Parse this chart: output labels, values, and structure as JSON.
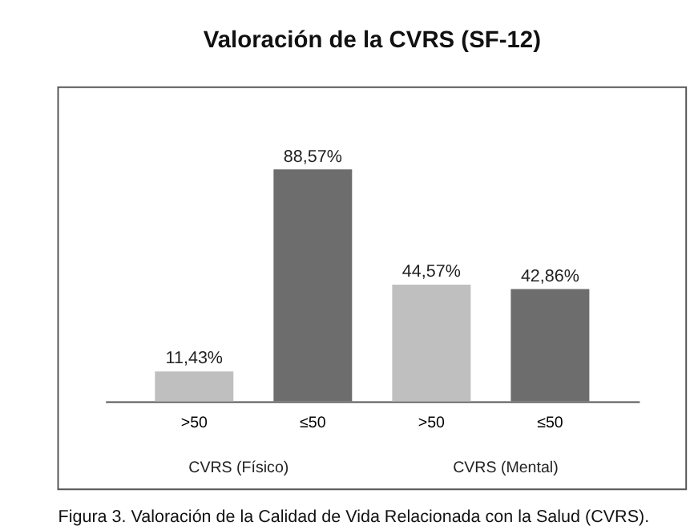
{
  "chart_data": {
    "type": "bar",
    "title": "Valoración de la CVRS (SF-12)",
    "categories": [
      ">50",
      "≤50",
      ">50",
      "≤50"
    ],
    "values": [
      11.43,
      88.57,
      44.57,
      42.86
    ],
    "colors": [
      "#bfbfbf",
      "#6d6d6d",
      "#bfbfbf",
      "#6d6d6d"
    ],
    "value_labels": [
      "11,43%",
      "88,57%",
      "44,57%",
      "42,86%"
    ],
    "annotations": [
      "CVRS (Físico)",
      "CVRS (Mental)",
      "Figura 3. Valoración de la Calidad de Vida Relacionada con la Salud (CVRS)."
    ],
    "data_labels": false
  }
}
